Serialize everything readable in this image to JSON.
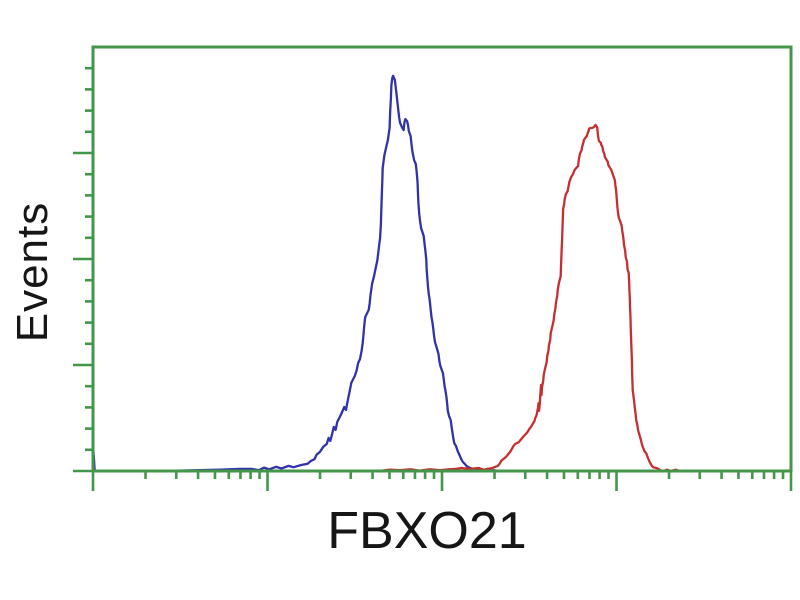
{
  "figure": {
    "background_color": "#ffffff",
    "description": "Flow cytometry overlay histogram of HEK293T cells, two fluorescence peaks"
  },
  "chart_data": {
    "type": "line",
    "subtype": "flow-cytometry-histogram",
    "title": "",
    "xlabel": "FBXO21",
    "ylabel": "Events",
    "frame_color": "#43964a",
    "label_color": "#161616",
    "x_axis": {
      "scale": "log",
      "decades": 4,
      "range_exponents": [
        0,
        4
      ],
      "major_tick_positions_decades": [
        0,
        1,
        2,
        3,
        4
      ],
      "minor_ticks": "log spaced 2-9 within each decade",
      "tick_labels_visible": false,
      "grid": false
    },
    "y_axis": {
      "scale": "linear",
      "range_percent": [
        0,
        100
      ],
      "major_tick_count": 5,
      "minors_per_major_gap": 4,
      "tick_labels_visible": false,
      "grid": false
    },
    "legend": null,
    "series": [
      {
        "name": "blue-curve",
        "color": "#3232aa",
        "peak_x_decade": 1.72,
        "peak_height_percent": 93.2,
        "points": [
          [
            0.0,
            0
          ],
          [
            0.003,
            4.5
          ],
          [
            0.01,
            0
          ],
          [
            0.4,
            0
          ],
          [
            0.73,
            0.3
          ],
          [
            0.84,
            0.5
          ],
          [
            0.91,
            0.5
          ],
          [
            0.95,
            0.2
          ],
          [
            0.98,
            0.8
          ],
          [
            1.01,
            0.4
          ],
          [
            1.05,
            1.0
          ],
          [
            1.08,
            0.6
          ],
          [
            1.12,
            1.2
          ],
          [
            1.15,
            0.9
          ],
          [
            1.19,
            1.4
          ],
          [
            1.23,
            1.7
          ],
          [
            1.25,
            2.4
          ],
          [
            1.27,
            2.8
          ],
          [
            1.28,
            3.8
          ],
          [
            1.3,
            4.5
          ],
          [
            1.32,
            5.7
          ],
          [
            1.34,
            6.4
          ],
          [
            1.35,
            7.8
          ],
          [
            1.36,
            7.1
          ],
          [
            1.37,
            8.7
          ],
          [
            1.38,
            10.4
          ],
          [
            1.39,
            9.7
          ],
          [
            1.4,
            11.6
          ],
          [
            1.42,
            13.2
          ],
          [
            1.44,
            15.1
          ],
          [
            1.45,
            14.4
          ],
          [
            1.46,
            16.7
          ],
          [
            1.47,
            18.6
          ],
          [
            1.48,
            20.8
          ],
          [
            1.5,
            22.4
          ],
          [
            1.51,
            23.6
          ],
          [
            1.52,
            25.5
          ],
          [
            1.53,
            26.4
          ],
          [
            1.54,
            28.5
          ],
          [
            1.545,
            30.0
          ],
          [
            1.55,
            32.1
          ],
          [
            1.555,
            34.4
          ],
          [
            1.56,
            36.3
          ],
          [
            1.58,
            38.0
          ],
          [
            1.585,
            39.4
          ],
          [
            1.59,
            41.5
          ],
          [
            1.6,
            44.3
          ],
          [
            1.61,
            45.8
          ],
          [
            1.63,
            49.8
          ],
          [
            1.64,
            53.3
          ],
          [
            1.645,
            55.0
          ],
          [
            1.65,
            58.3
          ],
          [
            1.652,
            61.6
          ],
          [
            1.655,
            65.1
          ],
          [
            1.658,
            68.4
          ],
          [
            1.66,
            71.5
          ],
          [
            1.67,
            74.5
          ],
          [
            1.68,
            76.4
          ],
          [
            1.69,
            78.1
          ],
          [
            1.7,
            80.9
          ],
          [
            1.703,
            84.9
          ],
          [
            1.707,
            88.0
          ],
          [
            1.71,
            91.0
          ],
          [
            1.715,
            92.7
          ],
          [
            1.72,
            93.2
          ],
          [
            1.73,
            92.2
          ],
          [
            1.735,
            90.3
          ],
          [
            1.74,
            88.7
          ],
          [
            1.745,
            86.8
          ],
          [
            1.75,
            84.9
          ],
          [
            1.755,
            83.3
          ],
          [
            1.76,
            82.1
          ],
          [
            1.77,
            81.1
          ],
          [
            1.78,
            80.4
          ],
          [
            1.785,
            82.3
          ],
          [
            1.79,
            83.0
          ],
          [
            1.8,
            82.5
          ],
          [
            1.805,
            81.6
          ],
          [
            1.81,
            80.2
          ],
          [
            1.82,
            79.0
          ],
          [
            1.825,
            77.1
          ],
          [
            1.83,
            75.5
          ],
          [
            1.84,
            73.3
          ],
          [
            1.85,
            72.4
          ],
          [
            1.855,
            70.5
          ],
          [
            1.86,
            67.9
          ],
          [
            1.862,
            65.8
          ],
          [
            1.865,
            63.2
          ],
          [
            1.87,
            60.4
          ],
          [
            1.875,
            58.7
          ],
          [
            1.88,
            57.3
          ],
          [
            1.895,
            55.4
          ],
          [
            1.9,
            53.5
          ],
          [
            1.905,
            51.9
          ],
          [
            1.91,
            49.8
          ],
          [
            1.912,
            47.9
          ],
          [
            1.915,
            45.8
          ],
          [
            1.92,
            43.4
          ],
          [
            1.925,
            41.5
          ],
          [
            1.93,
            40.1
          ],
          [
            1.935,
            38.0
          ],
          [
            1.94,
            36.3
          ],
          [
            1.945,
            35.1
          ],
          [
            1.95,
            33.5
          ],
          [
            1.955,
            31.8
          ],
          [
            1.96,
            30.4
          ],
          [
            1.97,
            29.0
          ],
          [
            1.98,
            27.6
          ],
          [
            1.985,
            25.9
          ],
          [
            1.99,
            24.8
          ],
          [
            2.005,
            23.1
          ],
          [
            2.01,
            21.7
          ],
          [
            2.015,
            20.0
          ],
          [
            2.02,
            18.9
          ],
          [
            2.025,
            17.5
          ],
          [
            2.03,
            15.8
          ],
          [
            2.033,
            14.2
          ],
          [
            2.04,
            13.0
          ],
          [
            2.05,
            12.0
          ],
          [
            2.055,
            10.4
          ],
          [
            2.06,
            9.0
          ],
          [
            2.065,
            7.8
          ],
          [
            2.07,
            6.6
          ],
          [
            2.08,
            5.9
          ],
          [
            2.09,
            4.7
          ],
          [
            2.1,
            3.8
          ],
          [
            2.11,
            2.8
          ],
          [
            2.12,
            2.1
          ],
          [
            2.13,
            1.7
          ],
          [
            2.14,
            1.2
          ],
          [
            2.16,
            0.7
          ],
          [
            2.18,
            0.5
          ],
          [
            2.22,
            0.2
          ],
          [
            2.26,
            0
          ],
          [
            2.3,
            0.2
          ],
          [
            2.33,
            0
          ]
        ]
      },
      {
        "name": "red-curve",
        "color": "#c62f2f",
        "peak_x_decade": 2.88,
        "peak_height_percent": 81.6,
        "points": [
          [
            1.64,
            0
          ],
          [
            1.7,
            0.3
          ],
          [
            1.76,
            0.2
          ],
          [
            1.82,
            0.4
          ],
          [
            1.87,
            0.1
          ],
          [
            1.93,
            0.4
          ],
          [
            1.99,
            0.2
          ],
          [
            2.04,
            0.4
          ],
          [
            2.08,
            0.5
          ],
          [
            2.11,
            0.7
          ],
          [
            2.16,
            0.5
          ],
          [
            2.21,
            0.7
          ],
          [
            2.24,
            0.3
          ],
          [
            2.26,
            0.5
          ],
          [
            2.29,
            0.7
          ],
          [
            2.3,
            0.9
          ],
          [
            2.32,
            1.2
          ],
          [
            2.33,
            1.7
          ],
          [
            2.34,
            2.4
          ],
          [
            2.36,
            3.1
          ],
          [
            2.37,
            3.5
          ],
          [
            2.38,
            4.0
          ],
          [
            2.39,
            4.5
          ],
          [
            2.4,
            5.2
          ],
          [
            2.41,
            5.9
          ],
          [
            2.42,
            6.4
          ],
          [
            2.44,
            6.8
          ],
          [
            2.45,
            7.3
          ],
          [
            2.46,
            7.8
          ],
          [
            2.47,
            8.3
          ],
          [
            2.48,
            8.7
          ],
          [
            2.49,
            9.2
          ],
          [
            2.5,
            9.9
          ],
          [
            2.51,
            10.4
          ],
          [
            2.52,
            11.1
          ],
          [
            2.53,
            11.8
          ],
          [
            2.533,
            12.3
          ],
          [
            2.54,
            13.0
          ],
          [
            2.543,
            13.4
          ],
          [
            2.55,
            14.9
          ],
          [
            2.553,
            16.0
          ],
          [
            2.556,
            14.2
          ],
          [
            2.56,
            15.6
          ],
          [
            2.562,
            17.2
          ],
          [
            2.565,
            18.9
          ],
          [
            2.568,
            20.3
          ],
          [
            2.57,
            17.9
          ],
          [
            2.573,
            19.8
          ],
          [
            2.58,
            21.2
          ],
          [
            2.583,
            22.6
          ],
          [
            2.59,
            24.1
          ],
          [
            2.6,
            25.7
          ],
          [
            2.603,
            27.1
          ],
          [
            2.61,
            28.3
          ],
          [
            2.613,
            29.7
          ],
          [
            2.62,
            30.9
          ],
          [
            2.623,
            32.5
          ],
          [
            2.63,
            33.7
          ],
          [
            2.64,
            35.6
          ],
          [
            2.643,
            36.8
          ],
          [
            2.65,
            38.4
          ],
          [
            2.653,
            39.6
          ],
          [
            2.66,
            41.3
          ],
          [
            2.663,
            42.7
          ],
          [
            2.67,
            44.3
          ],
          [
            2.68,
            46.0
          ],
          [
            2.682,
            48.3
          ],
          [
            2.684,
            50.7
          ],
          [
            2.686,
            52.6
          ],
          [
            2.688,
            54.5
          ],
          [
            2.69,
            56.8
          ],
          [
            2.692,
            59.4
          ],
          [
            2.694,
            61.8
          ],
          [
            2.7,
            63.0
          ],
          [
            2.703,
            64.2
          ],
          [
            2.71,
            65.3
          ],
          [
            2.72,
            66.0
          ],
          [
            2.723,
            66.7
          ],
          [
            2.73,
            68.2
          ],
          [
            2.74,
            69.3
          ],
          [
            2.75,
            70.0
          ],
          [
            2.76,
            71.0
          ],
          [
            2.77,
            71.5
          ],
          [
            2.78,
            71.9
          ],
          [
            2.783,
            73.1
          ],
          [
            2.79,
            74.8
          ],
          [
            2.8,
            75.7
          ],
          [
            2.803,
            76.4
          ],
          [
            2.81,
            77.4
          ],
          [
            2.813,
            78.1
          ],
          [
            2.82,
            78.5
          ],
          [
            2.83,
            79.0
          ],
          [
            2.833,
            79.5
          ],
          [
            2.84,
            80.2
          ],
          [
            2.843,
            80.7
          ],
          [
            2.85,
            80.9
          ],
          [
            2.86,
            80.9
          ],
          [
            2.87,
            81.1
          ],
          [
            2.875,
            81.4
          ],
          [
            2.88,
            81.6
          ],
          [
            2.885,
            81.4
          ],
          [
            2.89,
            80.9
          ],
          [
            2.893,
            79.5
          ],
          [
            2.896,
            78.5
          ],
          [
            2.9,
            77.8
          ],
          [
            2.91,
            77.4
          ],
          [
            2.913,
            76.9
          ],
          [
            2.92,
            76.4
          ],
          [
            2.923,
            75.5
          ],
          [
            2.93,
            74.8
          ],
          [
            2.933,
            74.1
          ],
          [
            2.94,
            73.6
          ],
          [
            2.95,
            72.9
          ],
          [
            2.953,
            72.2
          ],
          [
            2.96,
            71.7
          ],
          [
            2.963,
            71.5
          ],
          [
            2.97,
            71.0
          ],
          [
            2.98,
            69.8
          ],
          [
            2.99,
            68.6
          ],
          [
            2.993,
            67.5
          ],
          [
            2.996,
            66.7
          ],
          [
            3.0,
            65.1
          ],
          [
            3.003,
            63.4
          ],
          [
            3.006,
            62.0
          ],
          [
            3.01,
            60.6
          ],
          [
            3.013,
            59.7
          ],
          [
            3.02,
            59.0
          ],
          [
            3.03,
            57.8
          ],
          [
            3.033,
            56.6
          ],
          [
            3.04,
            54.7
          ],
          [
            3.043,
            53.3
          ],
          [
            3.05,
            51.9
          ],
          [
            3.053,
            50.5
          ],
          [
            3.06,
            49.3
          ],
          [
            3.063,
            47.6
          ],
          [
            3.07,
            46.7
          ],
          [
            3.072,
            44.8
          ],
          [
            3.074,
            42.7
          ],
          [
            3.076,
            40.8
          ],
          [
            3.078,
            38.4
          ],
          [
            3.08,
            36.1
          ],
          [
            3.082,
            33.3
          ],
          [
            3.085,
            29.7
          ],
          [
            3.088,
            26.2
          ],
          [
            3.09,
            22.6
          ],
          [
            3.093,
            19.1
          ],
          [
            3.1,
            16.7
          ],
          [
            3.105,
            14.9
          ],
          [
            3.11,
            13.2
          ],
          [
            3.113,
            12.0
          ],
          [
            3.12,
            10.8
          ],
          [
            3.123,
            9.7
          ],
          [
            3.13,
            8.7
          ],
          [
            3.14,
            7.3
          ],
          [
            3.145,
            6.4
          ],
          [
            3.15,
            5.7
          ],
          [
            3.16,
            4.7
          ],
          [
            3.17,
            4.2
          ],
          [
            3.18,
            3.1
          ],
          [
            3.19,
            2.1
          ],
          [
            3.2,
            1.4
          ],
          [
            3.21,
            0.9
          ],
          [
            3.23,
            0.7
          ],
          [
            3.24,
            0.5
          ],
          [
            3.25,
            0.2
          ],
          [
            3.27,
            0
          ],
          [
            3.29,
            0.3
          ],
          [
            3.31,
            0
          ],
          [
            3.34,
            0.3
          ],
          [
            3.36,
            0
          ]
        ]
      }
    ]
  }
}
